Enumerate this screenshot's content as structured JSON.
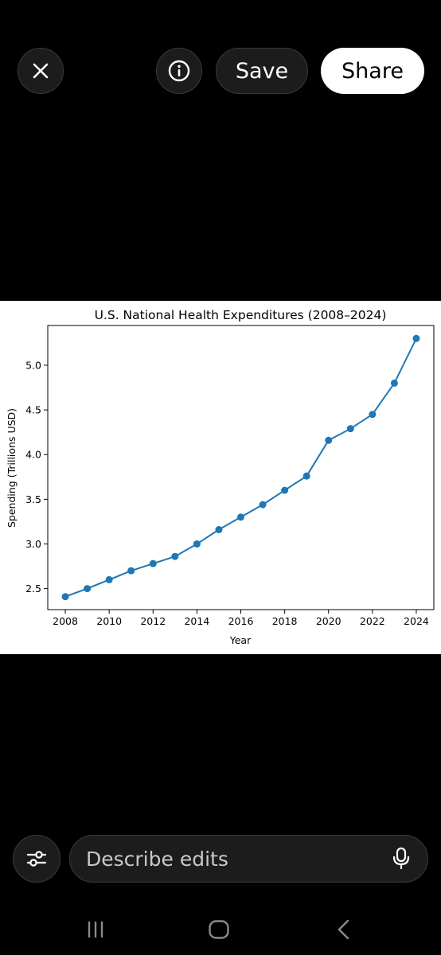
{
  "toolbar": {
    "close_icon": "close-icon",
    "info_icon": "info-icon",
    "save_label": "Save",
    "share_label": "Share"
  },
  "chart_data": {
    "type": "line",
    "title": "U.S. National Health Expenditures (2008–2024)",
    "xlabel": "Year",
    "ylabel": "Spending (Trillions USD)",
    "x": [
      2008,
      2009,
      2010,
      2011,
      2012,
      2013,
      2014,
      2015,
      2016,
      2017,
      2018,
      2019,
      2020,
      2021,
      2022,
      2023,
      2024
    ],
    "series": [
      {
        "values": [
          2.41,
          2.5,
          2.6,
          2.7,
          2.78,
          2.86,
          3.0,
          3.16,
          3.3,
          3.44,
          3.6,
          3.76,
          4.16,
          4.29,
          4.45,
          4.8,
          5.3
        ]
      }
    ],
    "xticks": [
      2008,
      2010,
      2012,
      2014,
      2016,
      2018,
      2020,
      2022,
      2024
    ],
    "yticks": [
      2.5,
      3.0,
      3.5,
      4.0,
      4.5,
      5.0
    ],
    "xlim": [
      2007.2,
      2024.8
    ],
    "ylim": [
      2.265,
      5.445
    ],
    "color": "#1f77b4",
    "grid": false,
    "legend": "none"
  },
  "bottom": {
    "settings_icon": "sliders-icon",
    "describe_placeholder": "Describe edits",
    "mic_icon": "microphone-icon"
  },
  "navbar": {
    "recent_icon": "recent-apps-icon",
    "home_icon": "home-icon",
    "back_icon": "back-icon"
  }
}
